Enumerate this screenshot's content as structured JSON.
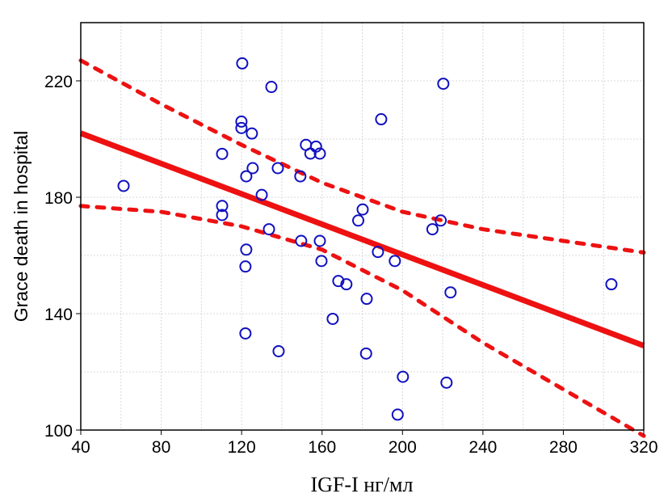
{
  "chart_data": {
    "type": "scatter",
    "title": "",
    "xlabel": "IGF-I нг/мл",
    "ylabel": "Grace death in hospital",
    "xlim": [
      40,
      320
    ],
    "ylim": [
      100,
      240
    ],
    "xticks": [
      40,
      80,
      120,
      160,
      200,
      240,
      280,
      320
    ],
    "yticks": [
      100,
      140,
      180,
      220
    ],
    "grid": true,
    "colors": {
      "points": "#1010c0",
      "fit": "#ee1111",
      "grid": "#d8d8d8"
    },
    "points": [
      [
        61.3,
        183.9
      ],
      [
        120.3,
        226
      ],
      [
        134.8,
        217.9
      ],
      [
        220.3,
        219
      ],
      [
        189.4,
        206.8
      ],
      [
        119.9,
        206
      ],
      [
        119.9,
        203.8
      ],
      [
        125.1,
        201.9
      ],
      [
        110.3,
        194.9
      ],
      [
        152,
        198
      ],
      [
        157,
        197.4
      ],
      [
        154.2,
        195
      ],
      [
        158.9,
        195
      ],
      [
        125.5,
        190
      ],
      [
        138,
        190
      ],
      [
        122.3,
        187.2
      ],
      [
        149.2,
        187.2
      ],
      [
        130,
        180.8
      ],
      [
        110.3,
        177
      ],
      [
        110.3,
        173.9
      ],
      [
        180.2,
        175.8
      ],
      [
        178,
        172
      ],
      [
        219,
        172
      ],
      [
        214.9,
        169
      ],
      [
        133.6,
        169
      ],
      [
        149.6,
        165
      ],
      [
        158.9,
        165
      ],
      [
        122.3,
        162
      ],
      [
        187.8,
        161.2
      ],
      [
        159.7,
        158.1
      ],
      [
        196.2,
        158.1
      ],
      [
        121.9,
        156.2
      ],
      [
        168.1,
        151.2
      ],
      [
        172.1,
        150.1
      ],
      [
        303.9,
        150.1
      ],
      [
        223.9,
        147.3
      ],
      [
        182.2,
        145.1
      ],
      [
        165.3,
        138.2
      ],
      [
        121.9,
        133.2
      ],
      [
        138.4,
        127.1
      ],
      [
        181.9,
        126.3
      ],
      [
        200.2,
        118.3
      ],
      [
        221.9,
        116.3
      ],
      [
        197.6,
        105.3
      ]
    ],
    "fit_line": {
      "x": [
        40,
        320
      ],
      "y": [
        202,
        129
      ]
    },
    "confidence_upper": {
      "x": [
        40,
        80,
        120,
        160,
        200,
        240,
        280,
        320
      ],
      "y": [
        227,
        212,
        198,
        185,
        175,
        169,
        165,
        161
      ]
    },
    "confidence_lower": {
      "x": [
        40,
        80,
        120,
        160,
        200,
        240,
        280,
        320
      ],
      "y": [
        177,
        175,
        170,
        162,
        148,
        130,
        114,
        98
      ]
    }
  }
}
